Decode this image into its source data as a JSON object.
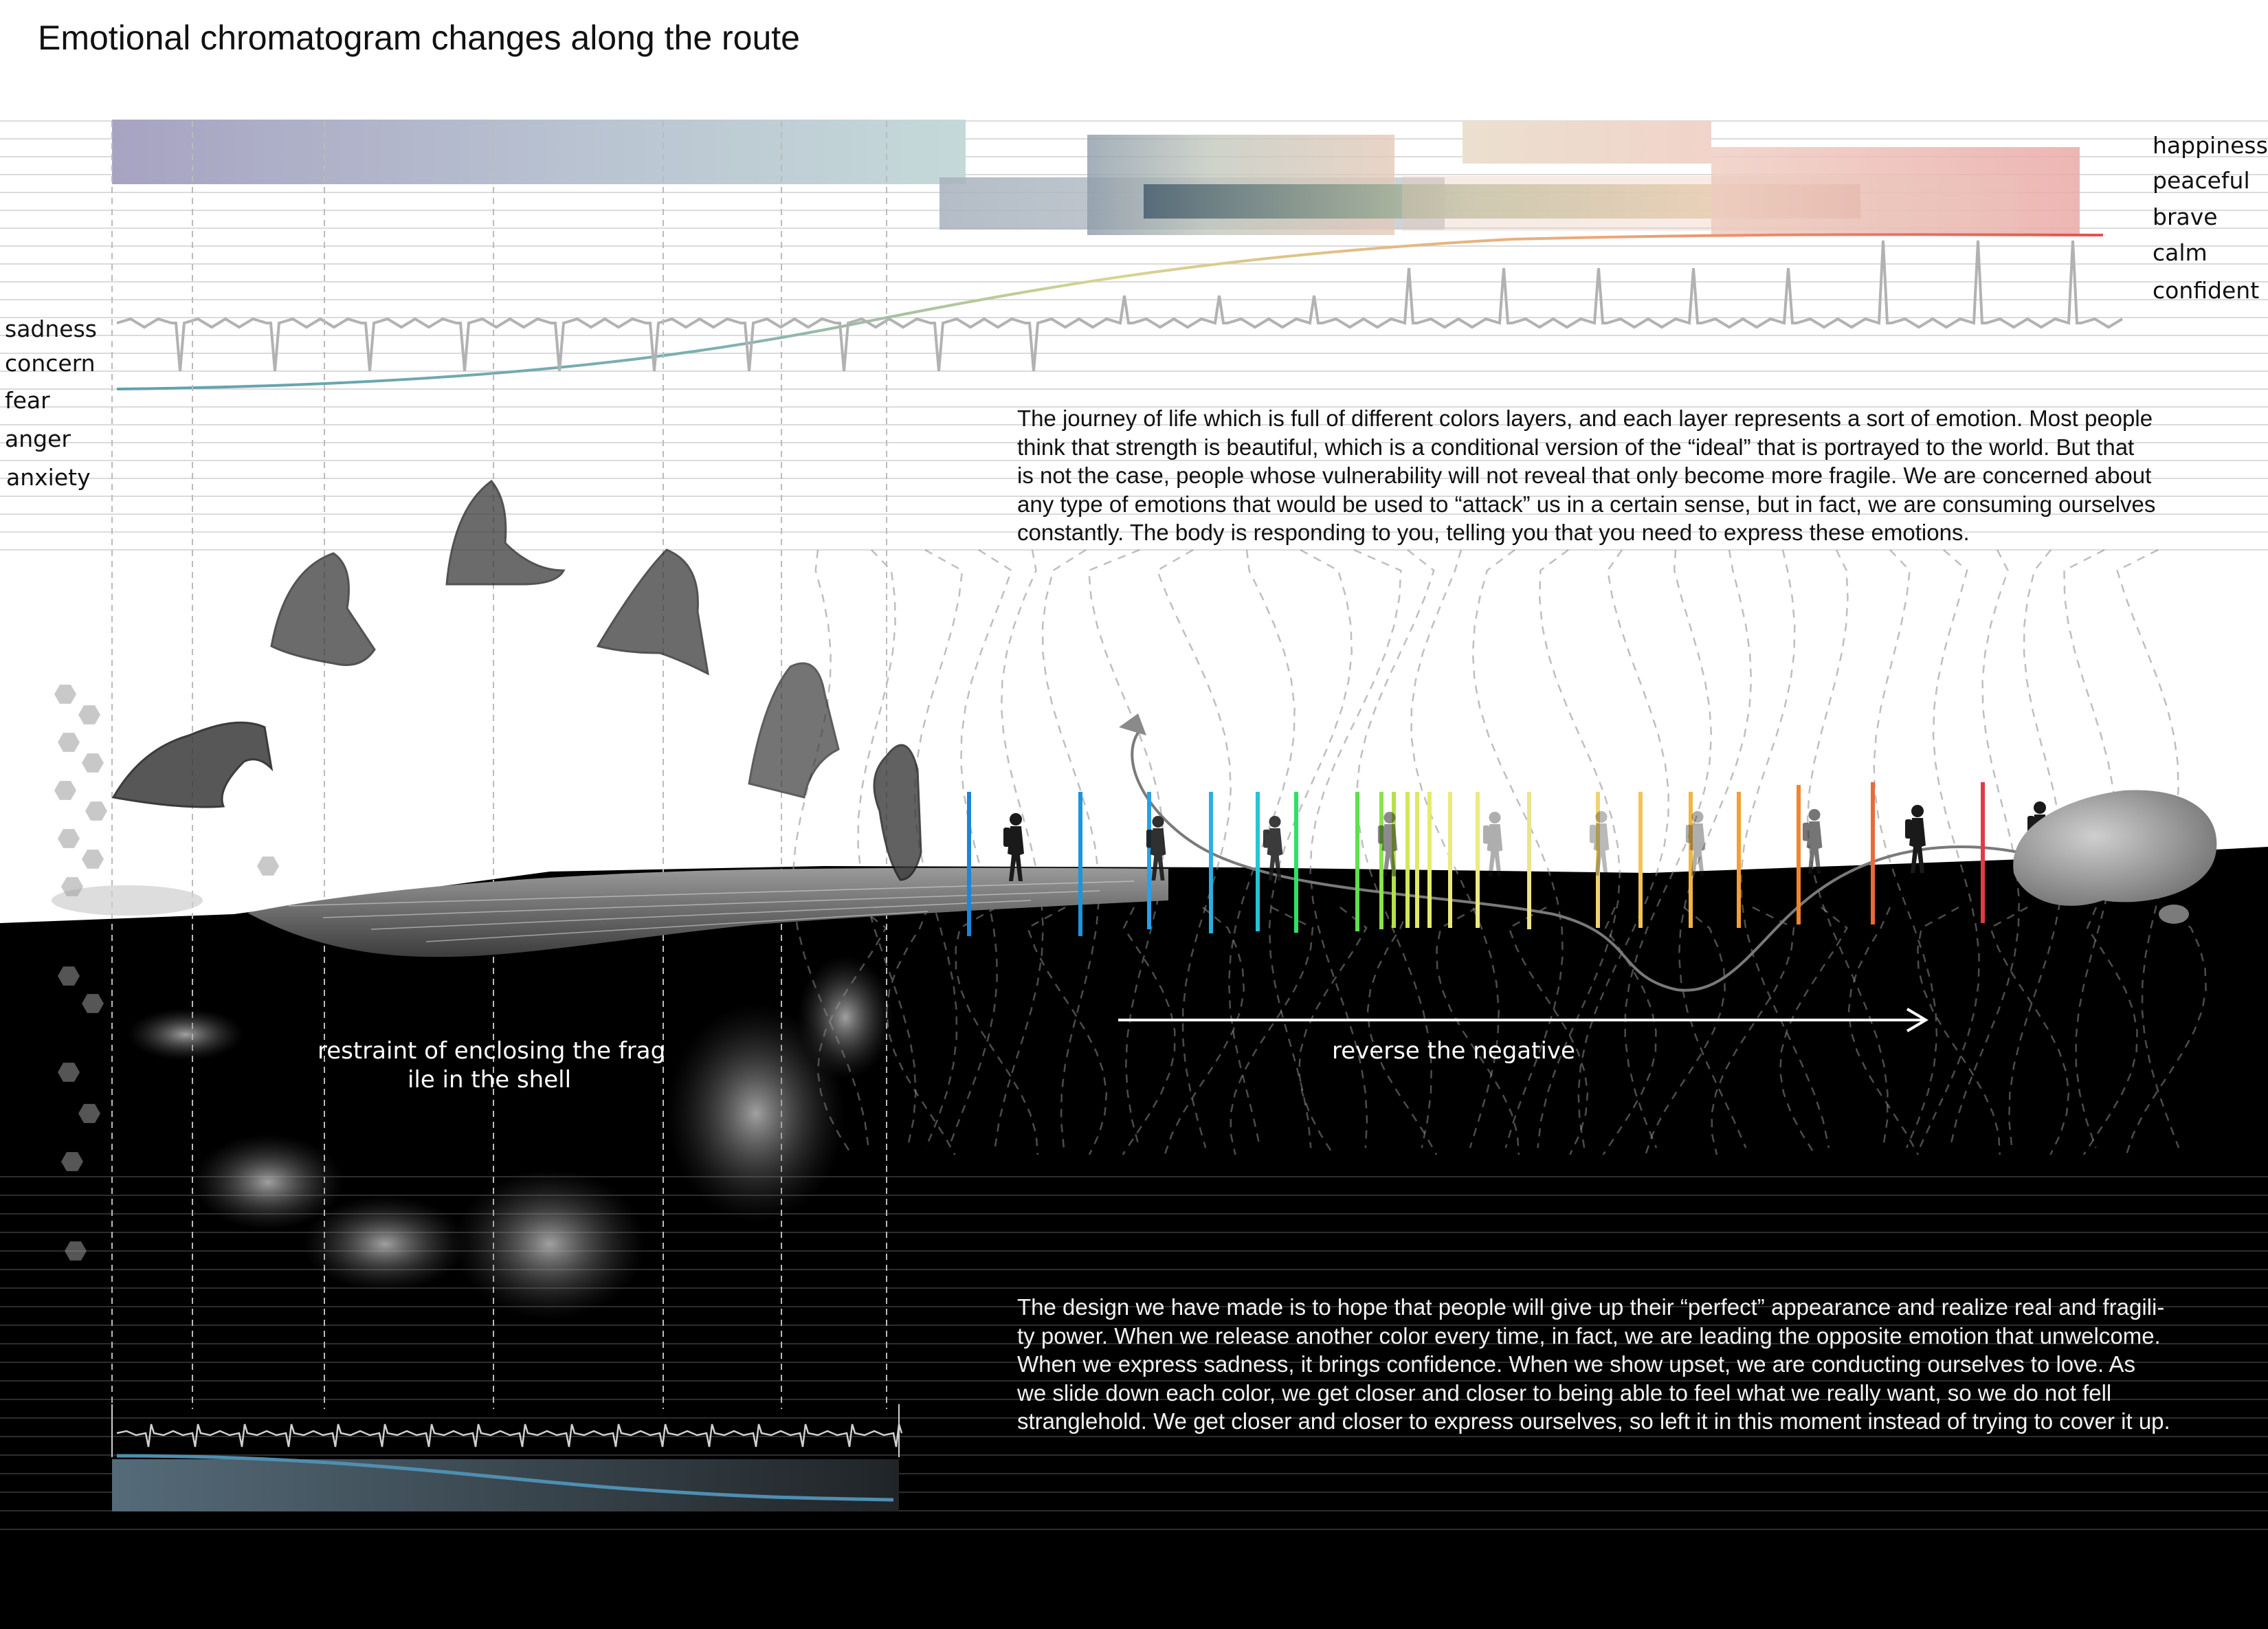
{
  "title": "Emotional chromatogram changes along the route",
  "positive_emotions": [
    "happiness",
    "peaceful",
    "brave",
    "calm",
    "confident"
  ],
  "negative_emotions": [
    "sadness",
    "concern",
    "fear",
    "anger",
    "anxiety"
  ],
  "intro_paragraph": [
    "The journey of life which is full of different colors layers, and each layer represents a sort of emotion. Most people",
    "think that strength is beautiful, which is a conditional version of the “ideal” that is portrayed to the world. But that",
    "is not the case, people whose vulnerability will not reveal that only become more fragile. We are concerned about",
    "any type of emotions that would be used to “attack” us in a certain sense, but in fact, we are consuming ourselves",
    "constantly. The body is responding to you, telling you that you need to express these emotions."
  ],
  "caption_left": [
    "restraint of enclosing the frag",
    "ile in the shell"
  ],
  "caption_right": "reverse the negative",
  "design_paragraph": [
    "The design we have made is to hope that people will give up their “perfect” appearance and realize real and fragili-",
    "ty power. When we release another color every time, in fact, we are leading the opposite emotion that unwelcome.",
    "When we express sadness, it brings confidence. When we show upset, we are conducting ourselves to love.  As",
    "we slide down each color, we get closer and closer to being able to feel what we really want, so we do not fell",
    "stranglehold. We get closer and closer to express ourselves, so left it in this moment instead of trying to cover it up."
  ],
  "palette": {
    "background": "#ffffff",
    "ground": "#000000",
    "cool_start": "#6fa7b6",
    "warm_end": "#e8544a"
  }
}
